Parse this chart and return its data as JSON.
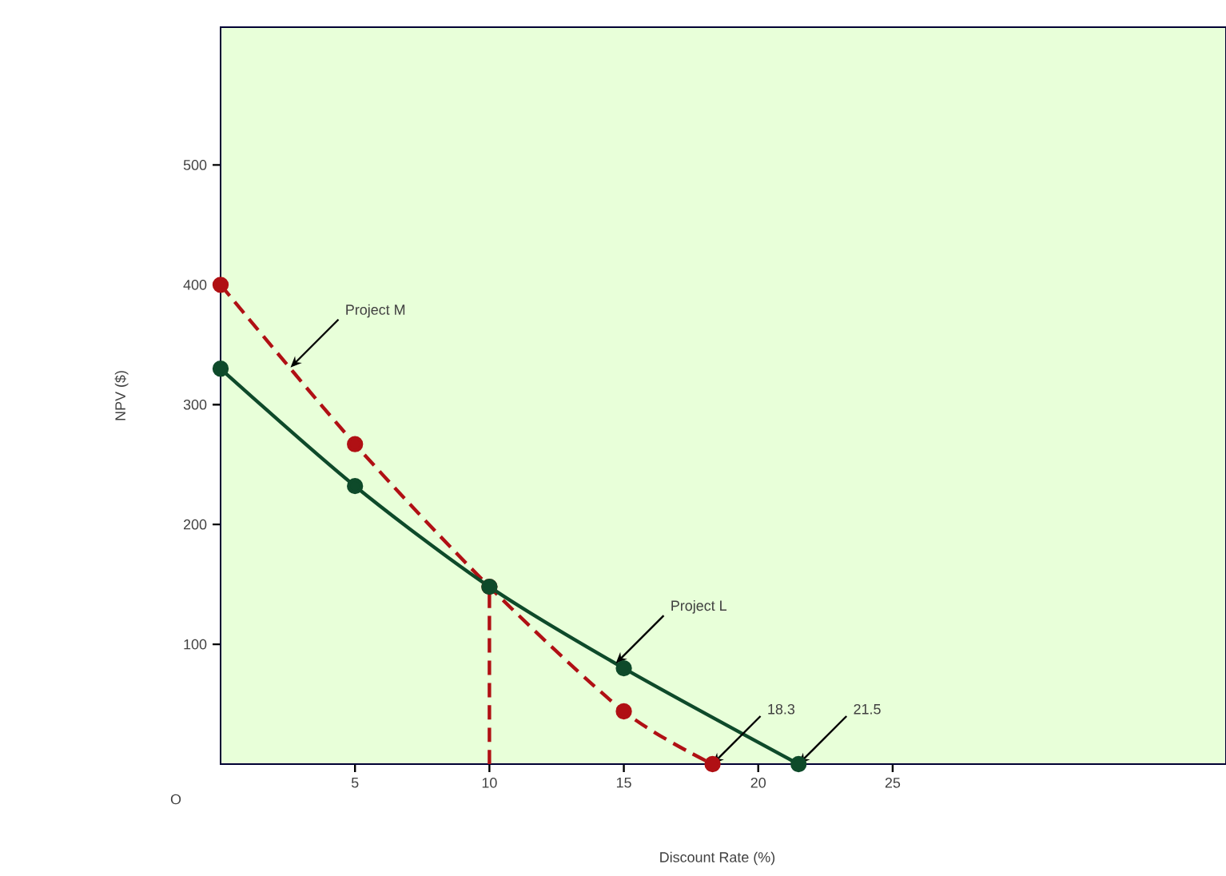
{
  "chart_data": {
    "type": "line",
    "xlabel": "Discount Rate (%)",
    "ylabel": "NPV ($)",
    "xlim": [
      0,
      37.4
    ],
    "ylim": [
      0,
      615
    ],
    "xticks": [
      5,
      10,
      15,
      20,
      25
    ],
    "yticks": [
      100,
      200,
      300,
      400,
      500
    ],
    "grid": false,
    "marker": "circle",
    "series": [
      {
        "x": [
          0,
          5,
          10,
          15,
          21.5
        ],
        "values": [
          330,
          232,
          148,
          80,
          0
        ],
        "color": "#0e4a2a",
        "line_style": "solid"
      },
      {
        "x": [
          0,
          5,
          10,
          15,
          18.3
        ],
        "values": [
          400,
          267,
          148,
          44,
          0
        ],
        "color": "#b01014",
        "line_style": "dashed"
      },
      {
        "x": [
          10,
          10
        ],
        "values": [
          0,
          148
        ],
        "color": "#b01014",
        "line_style": "dashed",
        "marker": "none"
      }
    ],
    "annotations": [
      {
        "text": "Project M",
        "x": 2.6,
        "y": 331
      },
      {
        "text": "Project L",
        "x": 14.7,
        "y": 84
      },
      {
        "text": "18.3",
        "x": 18.3,
        "y": 0
      },
      {
        "text": "21.5",
        "x": 21.5,
        "y": 0
      },
      "O"
    ]
  }
}
